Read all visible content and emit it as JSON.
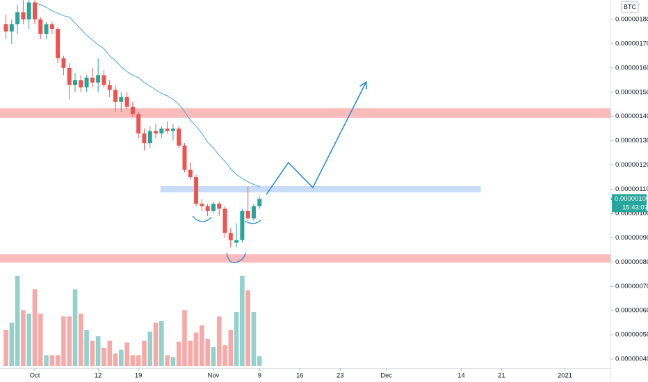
{
  "chart_data": {
    "type": "candlestick",
    "x": [
      -5,
      -4,
      -3,
      -2,
      -1,
      0,
      1,
      2,
      3,
      4,
      5,
      6,
      7,
      8,
      9,
      10,
      11,
      12,
      13,
      14,
      15,
      16,
      17,
      18,
      19,
      20,
      21,
      22,
      23,
      24,
      25,
      26,
      27,
      28,
      29,
      30,
      31,
      32,
      33,
      34,
      35,
      36,
      37,
      38,
      39
    ],
    "open": [
      1.78e-06,
      1.75e-06,
      1.78e-06,
      1.83e-06,
      1.8e-06,
      1.87e-06,
      1.8e-06,
      1.74e-06,
      1.78e-06,
      1.76e-06,
      1.64e-06,
      1.6e-06,
      1.53e-06,
      1.55e-06,
      1.52e-06,
      1.56e-06,
      1.54e-06,
      1.57e-06,
      1.53e-06,
      1.51e-06,
      1.46e-06,
      1.48e-06,
      1.44e-06,
      1.41e-06,
      1.33e-06,
      1.29e-06,
      1.34e-06,
      1.33e-06,
      1.35e-06,
      1.34e-06,
      1.35e-06,
      1.28e-06,
      1.18e-06,
      1.15e-06,
      1.04e-06,
      1.03e-06,
      1.01e-06,
      1.04e-06,
      1.02e-06,
      9.2e-07,
      8.8e-07,
      8.9e-07,
      1.01e-06,
      9.8e-07,
      1.03e-06
    ],
    "high": [
      1.82e-06,
      1.8e-06,
      1.86e-06,
      1.88e-06,
      1.88e-06,
      1.88e-06,
      1.81e-06,
      1.79e-06,
      1.79e-06,
      1.77e-06,
      1.65e-06,
      1.62e-06,
      1.58e-06,
      1.57e-06,
      1.57e-06,
      1.6e-06,
      1.64e-06,
      1.59e-06,
      1.55e-06,
      1.53e-06,
      1.5e-06,
      1.5e-06,
      1.46e-06,
      1.42e-06,
      1.35e-06,
      1.36e-06,
      1.37e-06,
      1.36e-06,
      1.38e-06,
      1.37e-06,
      1.36e-06,
      1.29e-06,
      1.21e-06,
      1.16e-06,
      1.06e-06,
      1.04e-06,
      1.05e-06,
      1.05e-06,
      1.03e-06,
      9.4e-07,
      9.6e-07,
      1.02e-06,
      1.11e-06,
      1.04e-06,
      1.07e-06
    ],
    "low": [
      1.72e-06,
      1.7e-06,
      1.74e-06,
      1.78e-06,
      1.76e-06,
      1.78e-06,
      1.72e-06,
      1.72e-06,
      1.74e-06,
      1.62e-06,
      1.57e-06,
      1.47e-06,
      1.5e-06,
      1.5e-06,
      1.5e-06,
      1.52e-06,
      1.5e-06,
      1.52e-06,
      1.48e-06,
      1.42e-06,
      1.42e-06,
      1.43e-06,
      1.4e-06,
      1.31e-06,
      1.26e-06,
      1.27e-06,
      1.31e-06,
      1.31e-06,
      1.33e-06,
      1.3e-06,
      1.27e-06,
      1.17e-06,
      1.14e-06,
      1.03e-06,
      1.01e-06,
      9.9e-07,
      1e-06,
      9.9e-07,
      9e-07,
      8.6e-07,
      8.6e-07,
      8.8e-07,
      9.7e-07,
      9.7e-07,
      1.02e-06
    ],
    "close": [
      1.75e-06,
      1.78e-06,
      1.83e-06,
      1.8e-06,
      1.87e-06,
      1.8e-06,
      1.74e-06,
      1.78e-06,
      1.76e-06,
      1.64e-06,
      1.6e-06,
      1.53e-06,
      1.55e-06,
      1.52e-06,
      1.56e-06,
      1.54e-06,
      1.57e-06,
      1.53e-06,
      1.51e-06,
      1.46e-06,
      1.48e-06,
      1.44e-06,
      1.41e-06,
      1.33e-06,
      1.29e-06,
      1.34e-06,
      1.33e-06,
      1.35e-06,
      1.34e-06,
      1.35e-06,
      1.28e-06,
      1.18e-06,
      1.15e-06,
      1.04e-06,
      1.03e-06,
      1.01e-06,
      1.04e-06,
      1.02e-06,
      9.2e-07,
      8.9e-07,
      8.9e-07,
      1.01e-06,
      9.8e-07,
      1.03e-06,
      1.06e-06
    ],
    "up_color": "#26a69a",
    "down_color": "#ef5350",
    "volume": {
      "up_color": "#93d2cc",
      "down_color": "#f7a9a7",
      "values": [
        40,
        48,
        100,
        62,
        58,
        85,
        58,
        12,
        12,
        12,
        55,
        55,
        85,
        58,
        40,
        28,
        33,
        20,
        28,
        14,
        18,
        26,
        12,
        12,
        28,
        38,
        48,
        50,
        12,
        10,
        27,
        62,
        28,
        37,
        45,
        30,
        21,
        55,
        23,
        40,
        60,
        100,
        84,
        60,
        11
      ]
    },
    "ma": {
      "color": "#4aa3df",
      "values": [
        null,
        null,
        null,
        null,
        null,
        1.87e-06,
        1.86e-06,
        1.85e-06,
        1.835e-06,
        1.825e-06,
        1.815e-06,
        1.81e-06,
        1.785e-06,
        1.76e-06,
        1.735e-06,
        1.715e-06,
        1.695e-06,
        1.68e-06,
        1.65e-06,
        1.63e-06,
        1.605e-06,
        1.585e-06,
        1.57e-06,
        1.56e-06,
        1.54e-06,
        1.525e-06,
        1.51e-06,
        1.495e-06,
        1.485e-06,
        1.47e-06,
        1.45e-06,
        1.42e-06,
        1.385e-06,
        1.36e-06,
        1.33e-06,
        1.295e-06,
        1.27e-06,
        1.24e-06,
        1.215e-06,
        1.185e-06,
        1.16e-06,
        1.145e-06,
        1.13e-06,
        1.12e-06,
        1.11e-06
      ]
    },
    "xlim": [
      -6.03,
      99.9
    ],
    "xticks": [
      {
        "value": 0,
        "label": "Oct"
      },
      {
        "value": 11,
        "label": "12"
      },
      {
        "value": 18,
        "label": "19"
      },
      {
        "value": 31,
        "label": "Nov"
      },
      {
        "value": 39,
        "label": "9"
      },
      {
        "value": 46,
        "label": "16"
      },
      {
        "value": 53,
        "label": "23"
      },
      {
        "value": 61,
        "label": "Dec"
      },
      {
        "value": 74,
        "label": "14"
      },
      {
        "value": 81,
        "label": "21"
      },
      {
        "value": 92,
        "label": "2021"
      }
    ],
    "ylim": [
      3.63e-07,
      1.88e-06
    ],
    "yticks": [
      {
        "value": 4e-07,
        "label": "0.00000040"
      },
      {
        "value": 5e-07,
        "label": "0.00000050"
      },
      {
        "value": 6e-07,
        "label": "0.00000060"
      },
      {
        "value": 7e-07,
        "label": "0.00000070"
      },
      {
        "value": 8e-07,
        "label": "0.00000080"
      },
      {
        "value": 9e-07,
        "label": "0.00000090"
      },
      {
        "value": 1e-06,
        "label": "0.00000100"
      },
      {
        "value": 1.1e-06,
        "label": "0.00000110"
      },
      {
        "value": 1.2e-06,
        "label": "0.00000120"
      },
      {
        "value": 1.3e-06,
        "label": "0.00000130"
      },
      {
        "value": 1.4e-06,
        "label": "0.00000140"
      },
      {
        "value": 1.5e-06,
        "label": "0.00000150"
      },
      {
        "value": 1.6e-06,
        "label": "0.00000160"
      },
      {
        "value": 1.7e-06,
        "label": "0.00000170"
      },
      {
        "value": 1.8e-06,
        "label": "0.00000180"
      }
    ],
    "grid": false,
    "currency": "BTC",
    "last_price": {
      "value": 1.06e-06,
      "label": "0.00000106"
    },
    "countdown": "15:43:07",
    "zones": [
      {
        "low": 1.394e-06,
        "high": 1.434e-06,
        "color": "#fbb4b4"
      },
      {
        "low": 7.98e-07,
        "high": 8.32e-07,
        "color": "#fbb4b4"
      }
    ],
    "box": {
      "x": [
        21.8,
        77.4
      ],
      "low": 1.087e-06,
      "high": 1.113e-06,
      "color": "#c8dcf8"
    },
    "arrow": {
      "color": "#2a8bd6",
      "x": [
        40.2,
        44.0,
        48.25,
        57.5
      ],
      "y": [
        1.079e-06,
        1.21e-06,
        1.107e-06,
        1.542e-06
      ]
    }
  }
}
